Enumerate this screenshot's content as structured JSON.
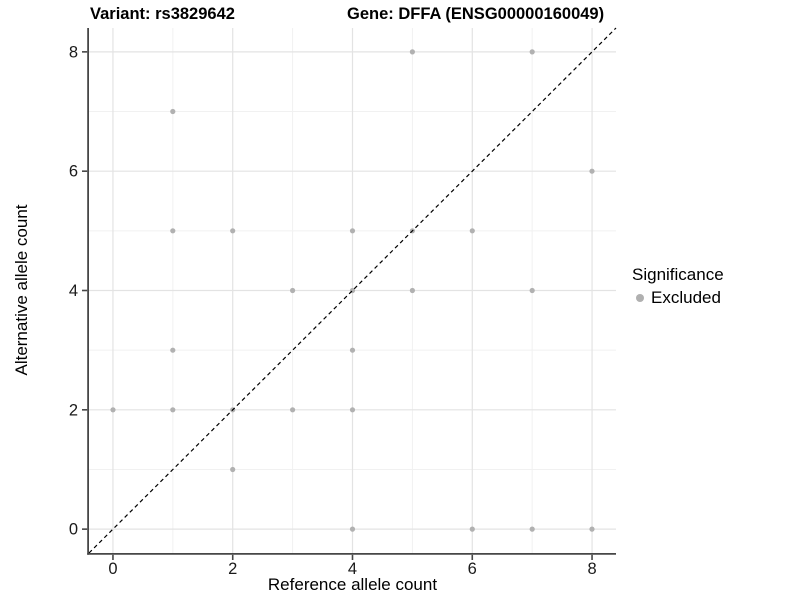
{
  "chart_data": {
    "type": "scatter",
    "titles": [
      "Variant: rs3829642",
      "Gene: DFFA (ENSG00000160049)"
    ],
    "xlabel": "Reference allele count",
    "ylabel": "Alternative allele count",
    "xlim": [
      -0.4,
      8.4
    ],
    "ylim": [
      -0.4,
      8.4
    ],
    "x_ticks": [
      0,
      2,
      4,
      6,
      8
    ],
    "y_ticks": [
      0,
      2,
      4,
      6,
      8
    ],
    "x_minor": [
      1,
      3,
      5,
      7
    ],
    "y_minor": [
      1,
      3,
      5,
      7
    ],
    "grid": "major+minor",
    "reference_line": {
      "slope": 1,
      "intercept": 0,
      "style": "dashed",
      "color": "#000000"
    },
    "legend": {
      "title": "Significance",
      "position": "right",
      "entries": [
        {
          "label": "Excluded",
          "color": "#b0b0b0"
        }
      ]
    },
    "series": [
      {
        "name": "Excluded",
        "marker": "circle",
        "color": "#b1b1b1",
        "points": [
          [
            0,
            2
          ],
          [
            1,
            2
          ],
          [
            1,
            3
          ],
          [
            1,
            5
          ],
          [
            1,
            7
          ],
          [
            2,
            1
          ],
          [
            2,
            2
          ],
          [
            2,
            5
          ],
          [
            3,
            2
          ],
          [
            3,
            4
          ],
          [
            4,
            0
          ],
          [
            4,
            2
          ],
          [
            4,
            3
          ],
          [
            4,
            4
          ],
          [
            4,
            5
          ],
          [
            5,
            4
          ],
          [
            5,
            5
          ],
          [
            5,
            8
          ],
          [
            6,
            0
          ],
          [
            6,
            5
          ],
          [
            7,
            0
          ],
          [
            7,
            4
          ],
          [
            7,
            8
          ],
          [
            8,
            0
          ],
          [
            8,
            6
          ]
        ]
      }
    ],
    "colors": {
      "grid_major": "#e3e3e3",
      "grid_minor": "#f1f1f1",
      "axis": "#474747",
      "tick_text": "#1a1a1a",
      "background": "#ffffff"
    }
  }
}
